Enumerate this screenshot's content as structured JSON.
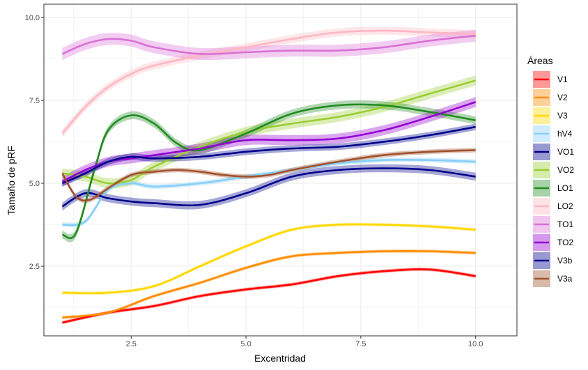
{
  "chart_data": {
    "type": "line",
    "xlabel": "Excentridad",
    "ylabel": "Tamaño de pRF",
    "xlim": [
      0.6,
      10.9
    ],
    "ylim": [
      0.4,
      10.4
    ],
    "x_ticks": [
      2.5,
      5.0,
      7.5,
      10.0
    ],
    "x_tick_labels": [
      "2.5",
      "5.0",
      "7.5",
      "10.0"
    ],
    "y_ticks": [
      2.5,
      5.0,
      7.5,
      10.0
    ],
    "y_tick_labels": [
      "2.5",
      "5.0",
      "7.5",
      "10.0"
    ],
    "grid": true,
    "legend": {
      "title": "Áreas",
      "position": "right"
    },
    "series": [
      {
        "name": "V1",
        "color": "#ff0000",
        "band": 0.05,
        "x": [
          1,
          2,
          3,
          4,
          5,
          6,
          7,
          8,
          9,
          10
        ],
        "y": [
          0.8,
          1.1,
          1.3,
          1.6,
          1.8,
          1.95,
          2.2,
          2.35,
          2.4,
          2.2
        ]
      },
      {
        "name": "V2",
        "color": "#ff8c00",
        "band": 0.05,
        "x": [
          1,
          2,
          3,
          4,
          5,
          6,
          7,
          8,
          9,
          10
        ],
        "y": [
          0.95,
          1.1,
          1.6,
          2.0,
          2.45,
          2.8,
          2.9,
          2.95,
          2.95,
          2.9
        ]
      },
      {
        "name": "V3",
        "color": "#ffd700",
        "band": 0.05,
        "x": [
          1,
          2,
          3,
          4,
          5,
          6,
          7,
          8,
          9,
          10
        ],
        "y": [
          1.7,
          1.7,
          1.9,
          2.5,
          3.1,
          3.6,
          3.75,
          3.75,
          3.7,
          3.6
        ]
      },
      {
        "name": "hV4",
        "color": "#87cefa",
        "band": 0.07,
        "x": [
          1,
          1.5,
          2,
          2.5,
          3,
          4,
          5,
          6,
          7,
          8,
          9,
          10
        ],
        "y": [
          3.75,
          3.85,
          4.8,
          5.0,
          4.9,
          5.0,
          5.2,
          5.4,
          5.6,
          5.7,
          5.7,
          5.65
        ]
      },
      {
        "name": "VO1",
        "color": "#00008b",
        "band": 0.12,
        "x": [
          1,
          1.5,
          2,
          2.5,
          3,
          4,
          5,
          6,
          7,
          8,
          9,
          10
        ],
        "y": [
          4.3,
          4.7,
          4.55,
          4.45,
          4.4,
          4.35,
          4.7,
          5.2,
          5.4,
          5.45,
          5.4,
          5.2
        ]
      },
      {
        "name": "VO2",
        "color": "#9acd32",
        "band": 0.15,
        "x": [
          1,
          1.5,
          2,
          2.5,
          3,
          4,
          5,
          6,
          7,
          8,
          9,
          10
        ],
        "y": [
          5.3,
          5.2,
          5.0,
          5.1,
          5.5,
          6.1,
          6.55,
          6.8,
          7.0,
          7.3,
          7.7,
          8.1
        ]
      },
      {
        "name": "LO1",
        "color": "#228b22",
        "band": 0.12,
        "x": [
          1,
          1.3,
          1.7,
          2,
          2.5,
          3,
          3.5,
          4,
          5,
          6,
          7,
          8,
          9,
          10
        ],
        "y": [
          3.45,
          3.5,
          5.4,
          6.6,
          7.05,
          6.8,
          6.2,
          6.0,
          6.5,
          7.1,
          7.35,
          7.35,
          7.15,
          6.9
        ]
      },
      {
        "name": "LO2",
        "color": "#ffb6c1",
        "band": 0.12,
        "x": [
          1,
          1.5,
          2,
          2.5,
          3,
          4,
          5,
          6,
          7,
          8,
          9,
          10
        ],
        "y": [
          6.5,
          7.3,
          7.9,
          8.3,
          8.55,
          8.85,
          9.1,
          9.35,
          9.55,
          9.6,
          9.55,
          9.5
        ]
      },
      {
        "name": "TO1",
        "color": "#da70d6",
        "band": 0.18,
        "x": [
          1,
          1.5,
          2,
          2.5,
          3,
          4,
          5,
          6,
          7,
          8,
          9,
          10
        ],
        "y": [
          8.9,
          9.2,
          9.35,
          9.3,
          9.1,
          8.9,
          8.95,
          9.0,
          9.0,
          9.1,
          9.3,
          9.45
        ]
      },
      {
        "name": "TO2",
        "color": "#9400d3",
        "band": 0.15,
        "x": [
          1,
          1.5,
          2,
          2.5,
          3,
          4,
          5,
          6,
          7,
          8,
          9,
          10
        ],
        "y": [
          5.05,
          5.4,
          5.65,
          5.75,
          5.85,
          6.05,
          6.3,
          6.3,
          6.35,
          6.6,
          7.0,
          7.45
        ]
      },
      {
        "name": "V3b",
        "color": "#00008b",
        "band": 0.1,
        "x": [
          1,
          1.5,
          2,
          2.5,
          3,
          4,
          5,
          6,
          7,
          8,
          9,
          10
        ],
        "y": [
          5.0,
          5.3,
          5.65,
          5.8,
          5.75,
          5.8,
          5.95,
          6.05,
          6.1,
          6.25,
          6.45,
          6.7
        ]
      },
      {
        "name": "V3a",
        "color": "#a0522d",
        "band": 0.07,
        "x": [
          1,
          1.3,
          1.6,
          2,
          2.5,
          3,
          3.5,
          4,
          4.5,
          5,
          5.5,
          6,
          7,
          8,
          9,
          10
        ],
        "y": [
          5.3,
          4.6,
          4.5,
          4.85,
          5.25,
          5.35,
          5.4,
          5.35,
          5.25,
          5.2,
          5.25,
          5.4,
          5.65,
          5.85,
          5.95,
          6.0
        ]
      }
    ]
  }
}
